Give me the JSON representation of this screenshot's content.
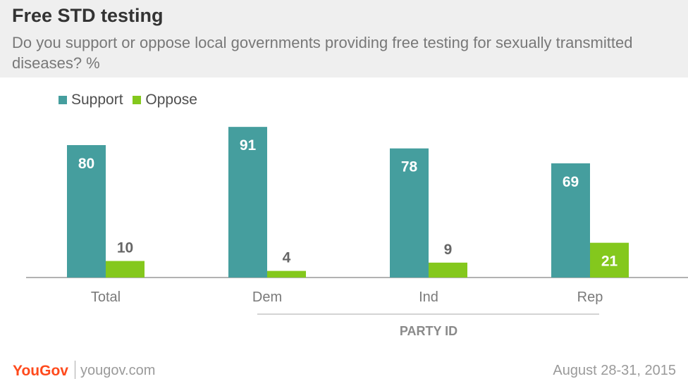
{
  "header": {
    "title": "Free STD testing",
    "subtitle": "Do you support or oppose local governments providing free testing for sexually transmitted diseases? %"
  },
  "footer": {
    "logo": "YouGov",
    "url": "yougov.com",
    "date": "August 28-31, 2015"
  },
  "colors": {
    "support": "#459e9e",
    "oppose": "#84c81d"
  },
  "chart_data": {
    "type": "bar",
    "title": "Free STD testing",
    "subtitle": "Do you support or oppose local governments providing free testing for sexually transmitted diseases? %",
    "categories": [
      "Total",
      "Dem",
      "Ind",
      "Rep"
    ],
    "series": [
      {
        "name": "Support",
        "values": [
          80,
          91,
          78,
          69
        ]
      },
      {
        "name": "Oppose",
        "values": [
          10,
          4,
          9,
          21
        ]
      }
    ],
    "group_label": "PARTY ID",
    "legend": "top-left",
    "ylim": [
      0,
      100
    ],
    "grid": false
  }
}
